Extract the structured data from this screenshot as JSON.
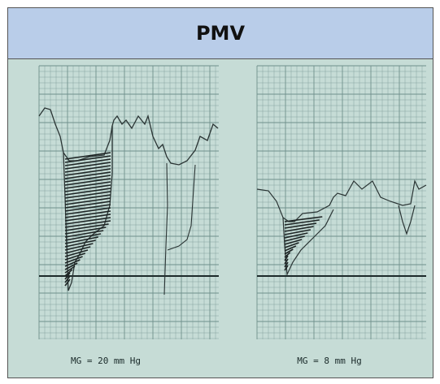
{
  "header": {
    "title": "PMV"
  },
  "panels": [
    {
      "caption": "MG = 20 mm Hg"
    },
    {
      "caption": "MG = 8 mm Hg"
    }
  ]
}
